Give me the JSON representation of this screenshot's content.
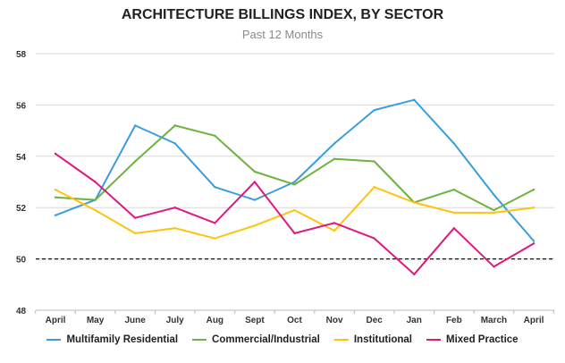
{
  "chart_data": {
    "type": "line",
    "title": "ARCHITECTURE BILLINGS INDEX, BY SECTOR",
    "subtitle": "Past 12 Months",
    "xlabel": "",
    "ylabel": "",
    "categories": [
      "April",
      "May",
      "June",
      "July",
      "Aug",
      "Sept",
      "Oct",
      "Nov",
      "Dec",
      "Jan",
      "Feb",
      "March",
      "April"
    ],
    "ylim": [
      48,
      58
    ],
    "yticks": [
      "48",
      "50",
      "52",
      "54",
      "56",
      "58"
    ],
    "reference_line": 50,
    "series": [
      {
        "name": "Multifamily Residential",
        "color": "#3b9ddd",
        "values": [
          51.7,
          52.3,
          55.2,
          54.5,
          52.8,
          52.3,
          53.0,
          54.5,
          55.8,
          56.2,
          54.5,
          52.5,
          50.7
        ]
      },
      {
        "name": "Commercial/Industrial",
        "color": "#6cb33f",
        "values": [
          52.4,
          52.3,
          53.8,
          55.2,
          54.8,
          53.4,
          52.9,
          53.9,
          53.8,
          52.2,
          52.7,
          51.9,
          52.7
        ]
      },
      {
        "name": "Institutional",
        "color": "#ffc20e",
        "values": [
          52.7,
          51.9,
          51.0,
          51.2,
          50.8,
          51.3,
          51.9,
          51.1,
          52.8,
          52.2,
          51.8,
          51.8,
          52.0
        ]
      },
      {
        "name": "Mixed Practice",
        "color": "#e0197e",
        "values": [
          54.1,
          53.0,
          51.6,
          52.0,
          51.4,
          53.0,
          51.0,
          51.4,
          50.8,
          49.4,
          51.2,
          49.7,
          50.6
        ]
      }
    ]
  }
}
